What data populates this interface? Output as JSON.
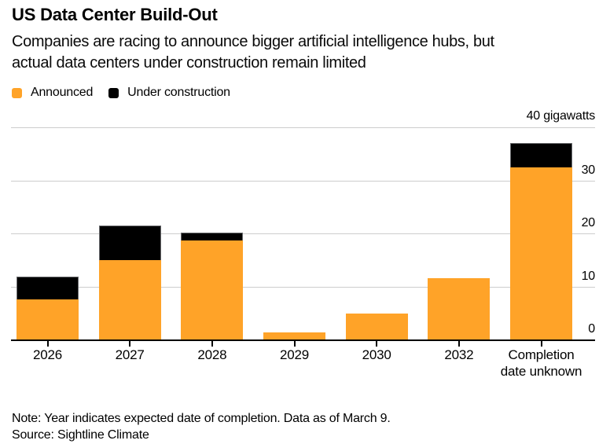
{
  "header": {
    "title": "US Data Center Build-Out",
    "subtitle_lines": [
      "Companies are racing to announce bigger artificial intelligence hubs, but",
      "actual data centers under construction remain limited"
    ]
  },
  "legend": [
    {
      "label": "Announced",
      "color": "#FFA328"
    },
    {
      "label": "Under construction",
      "color": "#000000"
    }
  ],
  "chart_data": {
    "type": "bar",
    "stacked": true,
    "title": "US Data Center Build-Out",
    "unit_label": "40 gigawatts",
    "xlabel": "",
    "ylabel": "gigawatts",
    "categories": [
      "2026",
      "2027",
      "2028",
      "2029",
      "2030",
      "2032",
      "Completion date unknown"
    ],
    "series": [
      {
        "name": "Announced",
        "color": "#FFA328",
        "values": [
          7.5,
          15,
          18.7,
          1.3,
          4.9,
          11.5,
          32.5
        ]
      },
      {
        "name": "Under construction",
        "color": "#000000",
        "values": [
          4.3,
          6.5,
          1.4,
          0,
          0,
          0,
          4.5
        ]
      }
    ],
    "ylim": [
      0,
      40
    ],
    "yticks": [
      0,
      10,
      20,
      30,
      40
    ],
    "grid": true,
    "legend_position": "top-left"
  },
  "footer": {
    "note": "Note: Year indicates expected date of completion. Data as of March 9.",
    "source": "Source: Sightline Climate"
  }
}
